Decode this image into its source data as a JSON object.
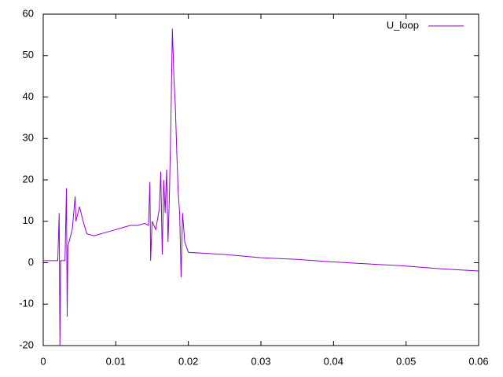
{
  "chart_data": {
    "type": "line",
    "xlim": [
      0,
      0.06
    ],
    "ylim": [
      -20,
      60
    ],
    "xticks": [
      0,
      0.01,
      0.02,
      0.03,
      0.04,
      0.05,
      0.06
    ],
    "yticks": [
      -20,
      -10,
      0,
      10,
      20,
      30,
      40,
      50,
      60
    ],
    "legend": "top-right",
    "x": [
      0,
      0.002,
      0.0022,
      0.0023,
      0.0024,
      0.003,
      0.0032,
      0.0033,
      0.0034,
      0.004,
      0.0044,
      0.0045,
      0.005,
      0.0055,
      0.006,
      0.007,
      0.008,
      0.009,
      0.01,
      0.011,
      0.012,
      0.013,
      0.014,
      0.0145,
      0.0147,
      0.0148,
      0.015,
      0.0155,
      0.016,
      0.0162,
      0.0164,
      0.0166,
      0.0168,
      0.017,
      0.0172,
      0.0174,
      0.0176,
      0.0178,
      0.018,
      0.0182,
      0.0184,
      0.0186,
      0.0188,
      0.019,
      0.0192,
      0.0195,
      0.02,
      0.025,
      0.03,
      0.035,
      0.04,
      0.045,
      0.05,
      0.055,
      0.06
    ],
    "series": [
      {
        "name": "U_loop",
        "color": "#9400d3",
        "values": [
          0.5,
          0.5,
          12,
          -20,
          0.5,
          0.5,
          18,
          -13,
          4,
          8,
          16,
          10,
          13.5,
          10,
          7,
          6.5,
          7,
          7.5,
          8,
          8.5,
          9,
          9,
          9.5,
          9,
          19.5,
          0.5,
          10,
          8,
          13,
          22,
          2,
          20,
          12,
          22.5,
          5,
          17,
          35,
          56.5,
          45,
          38,
          27,
          17,
          12,
          -3.5,
          12,
          5,
          2.5,
          2,
          1.2,
          0.8,
          0.2,
          -0.3,
          -0.8,
          -1.5,
          -2
        ]
      }
    ]
  }
}
